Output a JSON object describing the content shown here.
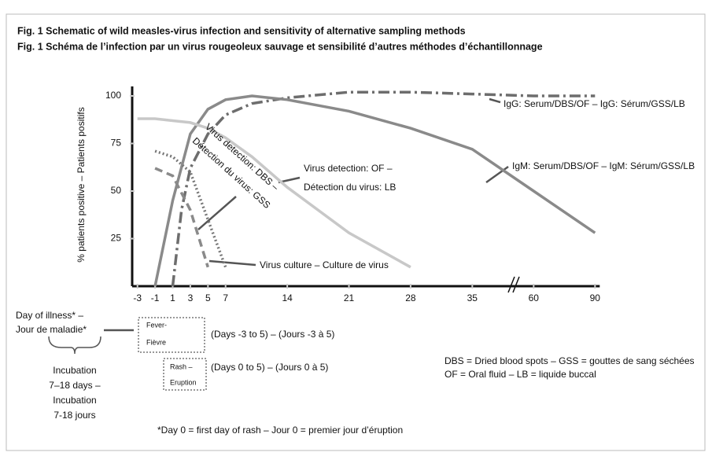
{
  "chart_data": {
    "type": "line",
    "title": "Fig. 1 Schematic of wild measles-virus infection and sensitivity of alternative sampling methods",
    "subtitle": "Fig. 1 Schéma de l’infection par un virus rougeoleux sauvage et sensibilité d’autres méthodes d’échantillonnage",
    "ylabel": "% patients positive – Patients positifs",
    "xlim": [
      -3.6,
      90
    ],
    "ylim": [
      0,
      105
    ],
    "xticks": [
      -3,
      -1,
      1,
      3,
      5,
      7,
      14,
      21,
      28,
      35,
      60,
      90
    ],
    "yticks": [
      25,
      50,
      75,
      100
    ],
    "series": [
      {
        "name": "IgG: Serum/DBS/OF – IgG: Sérum/GSS/LB",
        "color": "#6d6d6d",
        "style": "dash-dot",
        "x": [
          1,
          2,
          3,
          5,
          7,
          10,
          14,
          21,
          28,
          35,
          60,
          90
        ],
        "values": [
          0,
          40,
          62,
          80,
          90,
          96,
          99,
          102,
          102,
          101,
          100,
          100
        ]
      },
      {
        "name": "IgM: Serum/DBS/OF – IgM: Sérum/GSS/LB",
        "color": "#8a8a8a",
        "style": "solid",
        "x": [
          -1,
          1,
          3,
          5,
          7,
          10,
          14,
          21,
          28,
          35,
          60,
          90
        ],
        "values": [
          0,
          45,
          80,
          93,
          98,
          100,
          98,
          92,
          83,
          72,
          50,
          28
        ]
      },
      {
        "name": "Virus detection: OF – Détection du virus: LB",
        "color": "#c8c8c8",
        "style": "solid",
        "x": [
          -3,
          -1,
          1,
          3,
          5,
          7,
          10,
          14,
          21,
          28
        ],
        "values": [
          88,
          88,
          87,
          86,
          83,
          78,
          68,
          52,
          28,
          10
        ]
      },
      {
        "name": "Virus detection: DBS – Détection du virus: GSS",
        "color": "#777777",
        "style": "dotted",
        "x": [
          -1,
          1,
          3,
          5,
          7
        ],
        "values": [
          71,
          68,
          60,
          35,
          10
        ]
      },
      {
        "name": "Virus culture – Culture de virus",
        "color": "#8a8a8a",
        "style": "dashed",
        "x": [
          -1,
          1,
          3,
          5
        ],
        "values": [
          62,
          58,
          40,
          10
        ]
      }
    ],
    "notes": {
      "day_of_illness": [
        "Day of illness* –",
        "Jour de maladie*"
      ],
      "fever": [
        "Fever-",
        "Fièvre"
      ],
      "fever_days": "(Days -3 to 5) – (Jours -3 à 5)",
      "rash": [
        "Rash –",
        "Eruption"
      ],
      "rash_days": "(Days 0 to 5) – (Jours 0 à 5)",
      "incubation": [
        "Incubation",
        "7–18 days –",
        "Incubation",
        "7-18 jours"
      ],
      "footnote": "*Day 0 = first day of rash – Jour 0 = premier jour d’éruption",
      "abbreviations": [
        "DBS = Dried blood spots – GSS = gouttes de sang séchées",
        "OF = Oral fluid – LB = liquide buccal"
      ]
    }
  }
}
